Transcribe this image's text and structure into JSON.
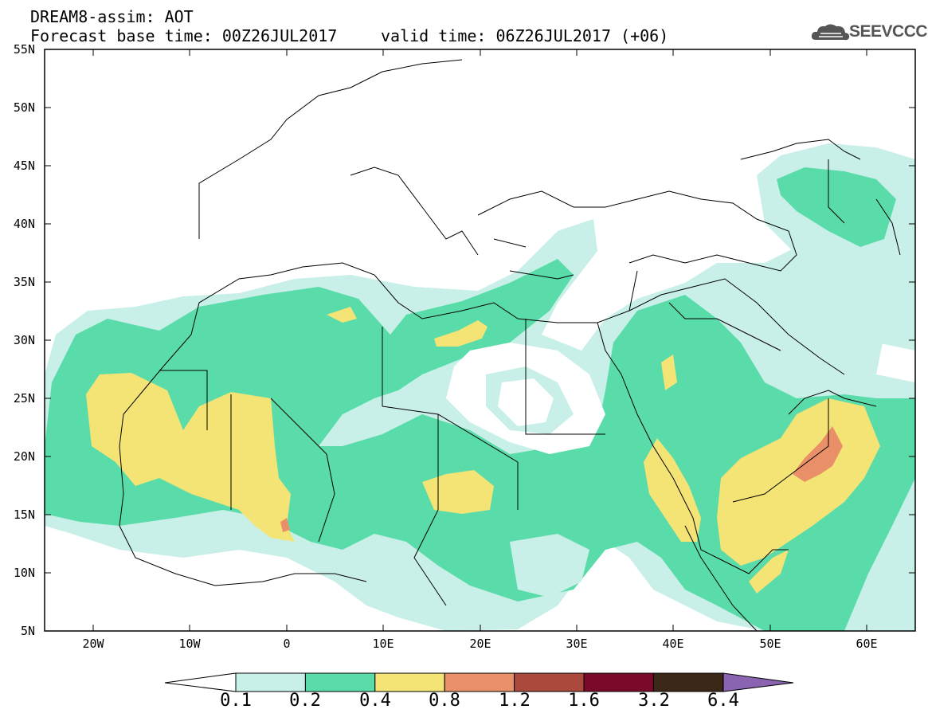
{
  "header": {
    "title": "DREAM8-assim: AOT",
    "base_time": "Forecast base time: 00Z26JUL2017",
    "valid_time": "valid time: 06Z26JUL2017 (+06)"
  },
  "logo": {
    "text": "SEEVCCC",
    "icon": "cloud-icon"
  },
  "map": {
    "lat_labels": [
      "55N",
      "50N",
      "45N",
      "40N",
      "35N",
      "30N",
      "25N",
      "20N",
      "15N",
      "10N",
      "5N"
    ],
    "lon_labels": [
      "20W",
      "10W",
      "0",
      "10E",
      "20E",
      "30E",
      "40E",
      "50E",
      "60E"
    ],
    "lat_range": [
      5,
      55
    ],
    "lon_range": [
      -25,
      65
    ]
  },
  "colorbar": {
    "thresholds": [
      "0.1",
      "0.2",
      "0.4",
      "0.8",
      "1.2",
      "1.6",
      "3.2",
      "6.4"
    ],
    "colors": [
      "#c8f0e8",
      "#5adcaa",
      "#f4e476",
      "#ea9068",
      "#aa4a3c",
      "#7a0a2a",
      "#3c2818",
      "#8a64b0"
    ]
  },
  "palette": {
    "low": "#c8f0e8",
    "mid": "#5adcaa",
    "high": "#f4e476",
    "very_high": "#ea9068"
  }
}
